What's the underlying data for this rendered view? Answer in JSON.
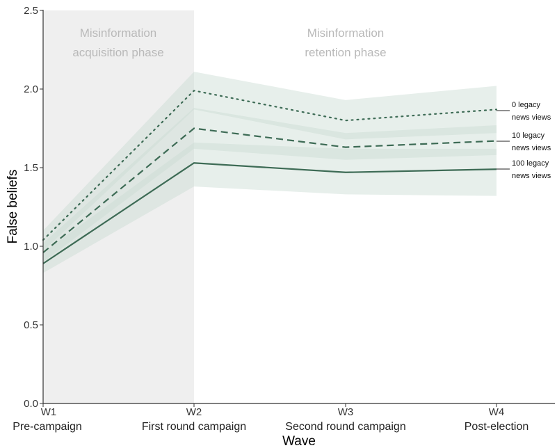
{
  "chart_data": {
    "type": "line",
    "xlabel": "Wave",
    "ylabel": "False beliefs",
    "ylim": [
      0,
      2.5
    ],
    "yticks": [
      "0.0",
      "0.5",
      "1.0",
      "1.5",
      "2.0",
      "2.5"
    ],
    "categories": [
      "W1",
      "W2",
      "W3",
      "W4"
    ],
    "category_sublabels": [
      "Pre-campaign",
      "First round campaign",
      "Second round campaign",
      "Post-election"
    ],
    "phases": [
      {
        "label_lines": [
          "Misinformation",
          "acquisition phase"
        ],
        "from": "W1",
        "to": "W2",
        "shaded": true
      },
      {
        "label_lines": [
          "Misinformation",
          "retention phase"
        ],
        "from": "W2",
        "to": "W4",
        "shaded": false
      }
    ],
    "series": [
      {
        "name": "0 legacy news views",
        "label_lines": [
          "0 legacy",
          "news views"
        ],
        "line_style": "dotted",
        "values": [
          1.04,
          1.99,
          1.8,
          1.87
        ],
        "lower": [
          0.97,
          1.87,
          1.68,
          1.72
        ],
        "upper": [
          1.1,
          2.11,
          1.93,
          2.02
        ]
      },
      {
        "name": "10 legacy news views",
        "label_lines": [
          "10 legacy",
          "news views"
        ],
        "line_style": "dashed",
        "values": [
          0.96,
          1.75,
          1.63,
          1.67
        ],
        "lower": [
          0.9,
          1.62,
          1.55,
          1.58
        ],
        "upper": [
          1.02,
          1.88,
          1.72,
          1.77
        ]
      },
      {
        "name": "100 legacy news views",
        "label_lines": [
          "100 legacy",
          "news views"
        ],
        "line_style": "solid",
        "values": [
          0.89,
          1.53,
          1.47,
          1.49
        ],
        "lower": [
          0.83,
          1.38,
          1.33,
          1.32
        ],
        "upper": [
          0.96,
          1.66,
          1.62,
          1.62
        ]
      }
    ],
    "grid": false,
    "legend": "right end labels",
    "colors": {
      "line": "#3d6b55",
      "ci_band": "#c9dcd2",
      "phase_shade": "#efefef",
      "axis": "#333333"
    }
  }
}
